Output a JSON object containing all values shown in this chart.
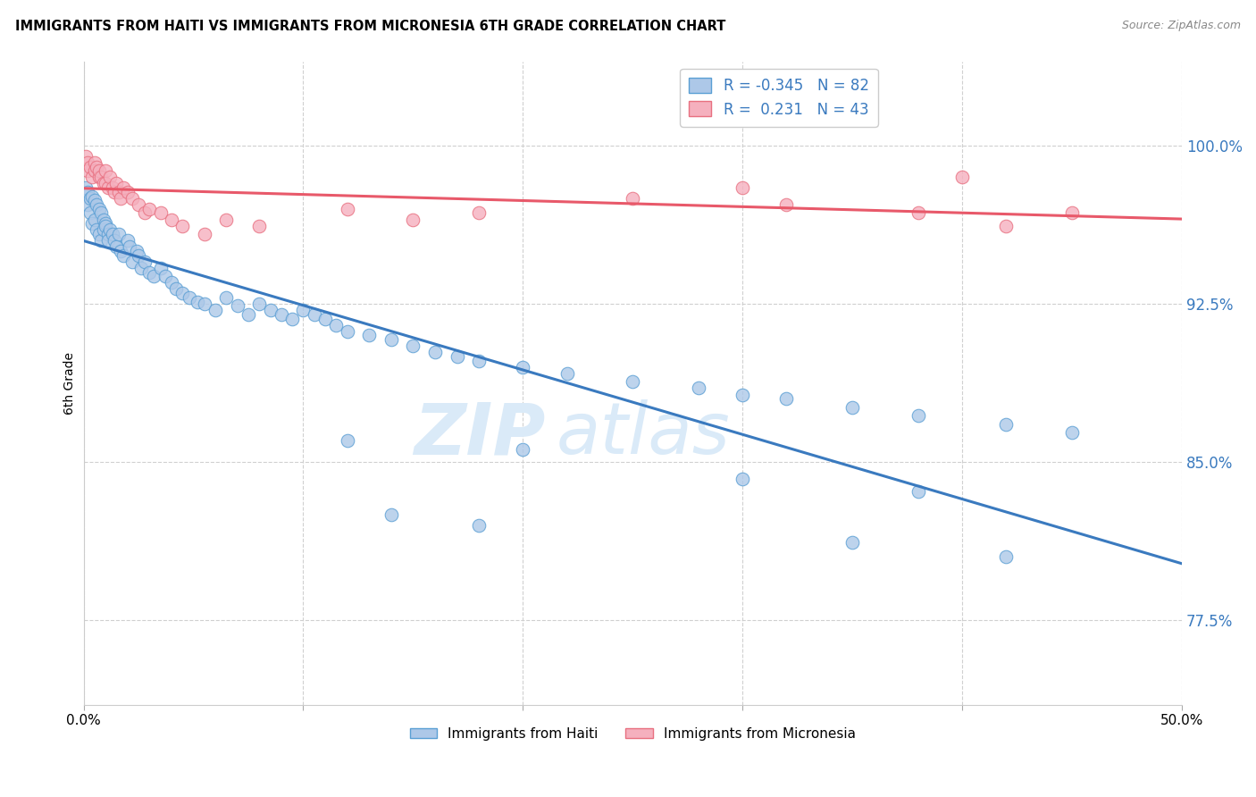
{
  "title": "IMMIGRANTS FROM HAITI VS IMMIGRANTS FROM MICRONESIA 6TH GRADE CORRELATION CHART",
  "source": "Source: ZipAtlas.com",
  "ylabel": "6th Grade",
  "yticks": [
    0.775,
    0.85,
    0.925,
    1.0
  ],
  "ytick_labels": [
    "77.5%",
    "85.0%",
    "92.5%",
    "100.0%"
  ],
  "xlim": [
    0.0,
    0.5
  ],
  "ylim": [
    0.735,
    1.04
  ],
  "legend_r_haiti": "-0.345",
  "legend_n_haiti": "82",
  "legend_r_micro": "0.231",
  "legend_n_micro": "43",
  "haiti_color": "#adc8e8",
  "micro_color": "#f5b0be",
  "haiti_edge_color": "#5a9fd4",
  "micro_edge_color": "#e87080",
  "haiti_line_color": "#3a7abf",
  "micro_line_color": "#e8596a",
  "watermark_color": "#daeaf8",
  "haiti_x": [
    0.001,
    0.002,
    0.002,
    0.003,
    0.003,
    0.004,
    0.004,
    0.005,
    0.005,
    0.006,
    0.006,
    0.007,
    0.007,
    0.008,
    0.008,
    0.009,
    0.009,
    0.01,
    0.01,
    0.011,
    0.011,
    0.012,
    0.013,
    0.014,
    0.015,
    0.016,
    0.017,
    0.018,
    0.02,
    0.021,
    0.022,
    0.024,
    0.025,
    0.026,
    0.028,
    0.03,
    0.032,
    0.035,
    0.037,
    0.04,
    0.042,
    0.045,
    0.048,
    0.052,
    0.055,
    0.06,
    0.065,
    0.07,
    0.075,
    0.08,
    0.085,
    0.09,
    0.095,
    0.1,
    0.105,
    0.11,
    0.115,
    0.12,
    0.13,
    0.14,
    0.15,
    0.16,
    0.17,
    0.18,
    0.2,
    0.22,
    0.25,
    0.28,
    0.3,
    0.32,
    0.35,
    0.38,
    0.42,
    0.45,
    0.12,
    0.2,
    0.3,
    0.38,
    0.14,
    0.18,
    0.35,
    0.42
  ],
  "haiti_y": [
    0.98,
    0.978,
    0.972,
    0.975,
    0.968,
    0.976,
    0.963,
    0.974,
    0.965,
    0.972,
    0.96,
    0.97,
    0.958,
    0.968,
    0.955,
    0.965,
    0.96,
    0.963,
    0.962,
    0.958,
    0.955,
    0.96,
    0.958,
    0.955,
    0.952,
    0.958,
    0.95,
    0.948,
    0.955,
    0.952,
    0.945,
    0.95,
    0.948,
    0.942,
    0.945,
    0.94,
    0.938,
    0.942,
    0.938,
    0.935,
    0.932,
    0.93,
    0.928,
    0.926,
    0.925,
    0.922,
    0.928,
    0.924,
    0.92,
    0.925,
    0.922,
    0.92,
    0.918,
    0.922,
    0.92,
    0.918,
    0.915,
    0.912,
    0.91,
    0.908,
    0.905,
    0.902,
    0.9,
    0.898,
    0.895,
    0.892,
    0.888,
    0.885,
    0.882,
    0.88,
    0.876,
    0.872,
    0.868,
    0.864,
    0.86,
    0.856,
    0.842,
    0.836,
    0.825,
    0.82,
    0.812,
    0.805
  ],
  "micro_x": [
    0.001,
    0.002,
    0.002,
    0.003,
    0.004,
    0.005,
    0.005,
    0.006,
    0.007,
    0.007,
    0.008,
    0.009,
    0.01,
    0.01,
    0.011,
    0.012,
    0.013,
    0.014,
    0.015,
    0.016,
    0.017,
    0.018,
    0.02,
    0.022,
    0.025,
    0.028,
    0.03,
    0.035,
    0.04,
    0.045,
    0.055,
    0.065,
    0.08,
    0.12,
    0.15,
    0.18,
    0.25,
    0.32,
    0.4,
    0.45,
    0.3,
    0.42,
    0.38
  ],
  "micro_y": [
    0.995,
    0.992,
    0.988,
    0.99,
    0.985,
    0.992,
    0.988,
    0.99,
    0.985,
    0.988,
    0.985,
    0.982,
    0.988,
    0.982,
    0.98,
    0.985,
    0.98,
    0.978,
    0.982,
    0.978,
    0.975,
    0.98,
    0.978,
    0.975,
    0.972,
    0.968,
    0.97,
    0.968,
    0.965,
    0.962,
    0.958,
    0.965,
    0.962,
    0.97,
    0.965,
    0.968,
    0.975,
    0.972,
    0.985,
    0.968,
    0.98,
    0.962,
    0.968
  ],
  "haiti_line_start_x": 0.0,
  "haiti_line_end_x": 0.5,
  "micro_line_start_x": 0.0,
  "micro_line_end_x": 0.5
}
